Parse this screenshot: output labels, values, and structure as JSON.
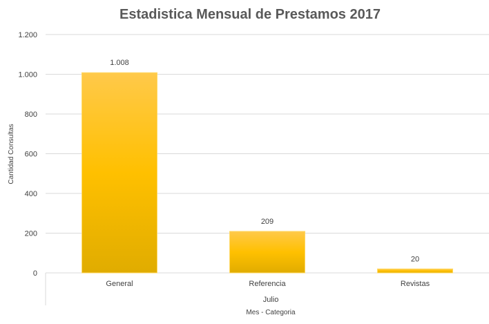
{
  "chart_data": {
    "type": "bar",
    "title": "Estadistica Mensual de Prestamos 2017",
    "categories": [
      "General",
      "Referencia",
      "Revistas"
    ],
    "group_label": "Julio",
    "values": [
      1008,
      209,
      20
    ],
    "value_labels": [
      "1.008",
      "209",
      "20"
    ],
    "xlabel": "Mes - Categoria",
    "ylabel": "Cantidad Consultas",
    "ylim": [
      0,
      1200
    ],
    "yticks": [
      0,
      200,
      400,
      600,
      800,
      1000,
      1200
    ],
    "ytick_labels": [
      "0",
      "200",
      "400",
      "600",
      "800",
      "1.000",
      "1.200"
    ],
    "grid": true,
    "legend": "none",
    "bar_color_top": "#ffc94a",
    "bar_color_mid": "#ffc000",
    "bar_color_bottom": "#e0ac00",
    "bar_border": "#ffd966"
  }
}
